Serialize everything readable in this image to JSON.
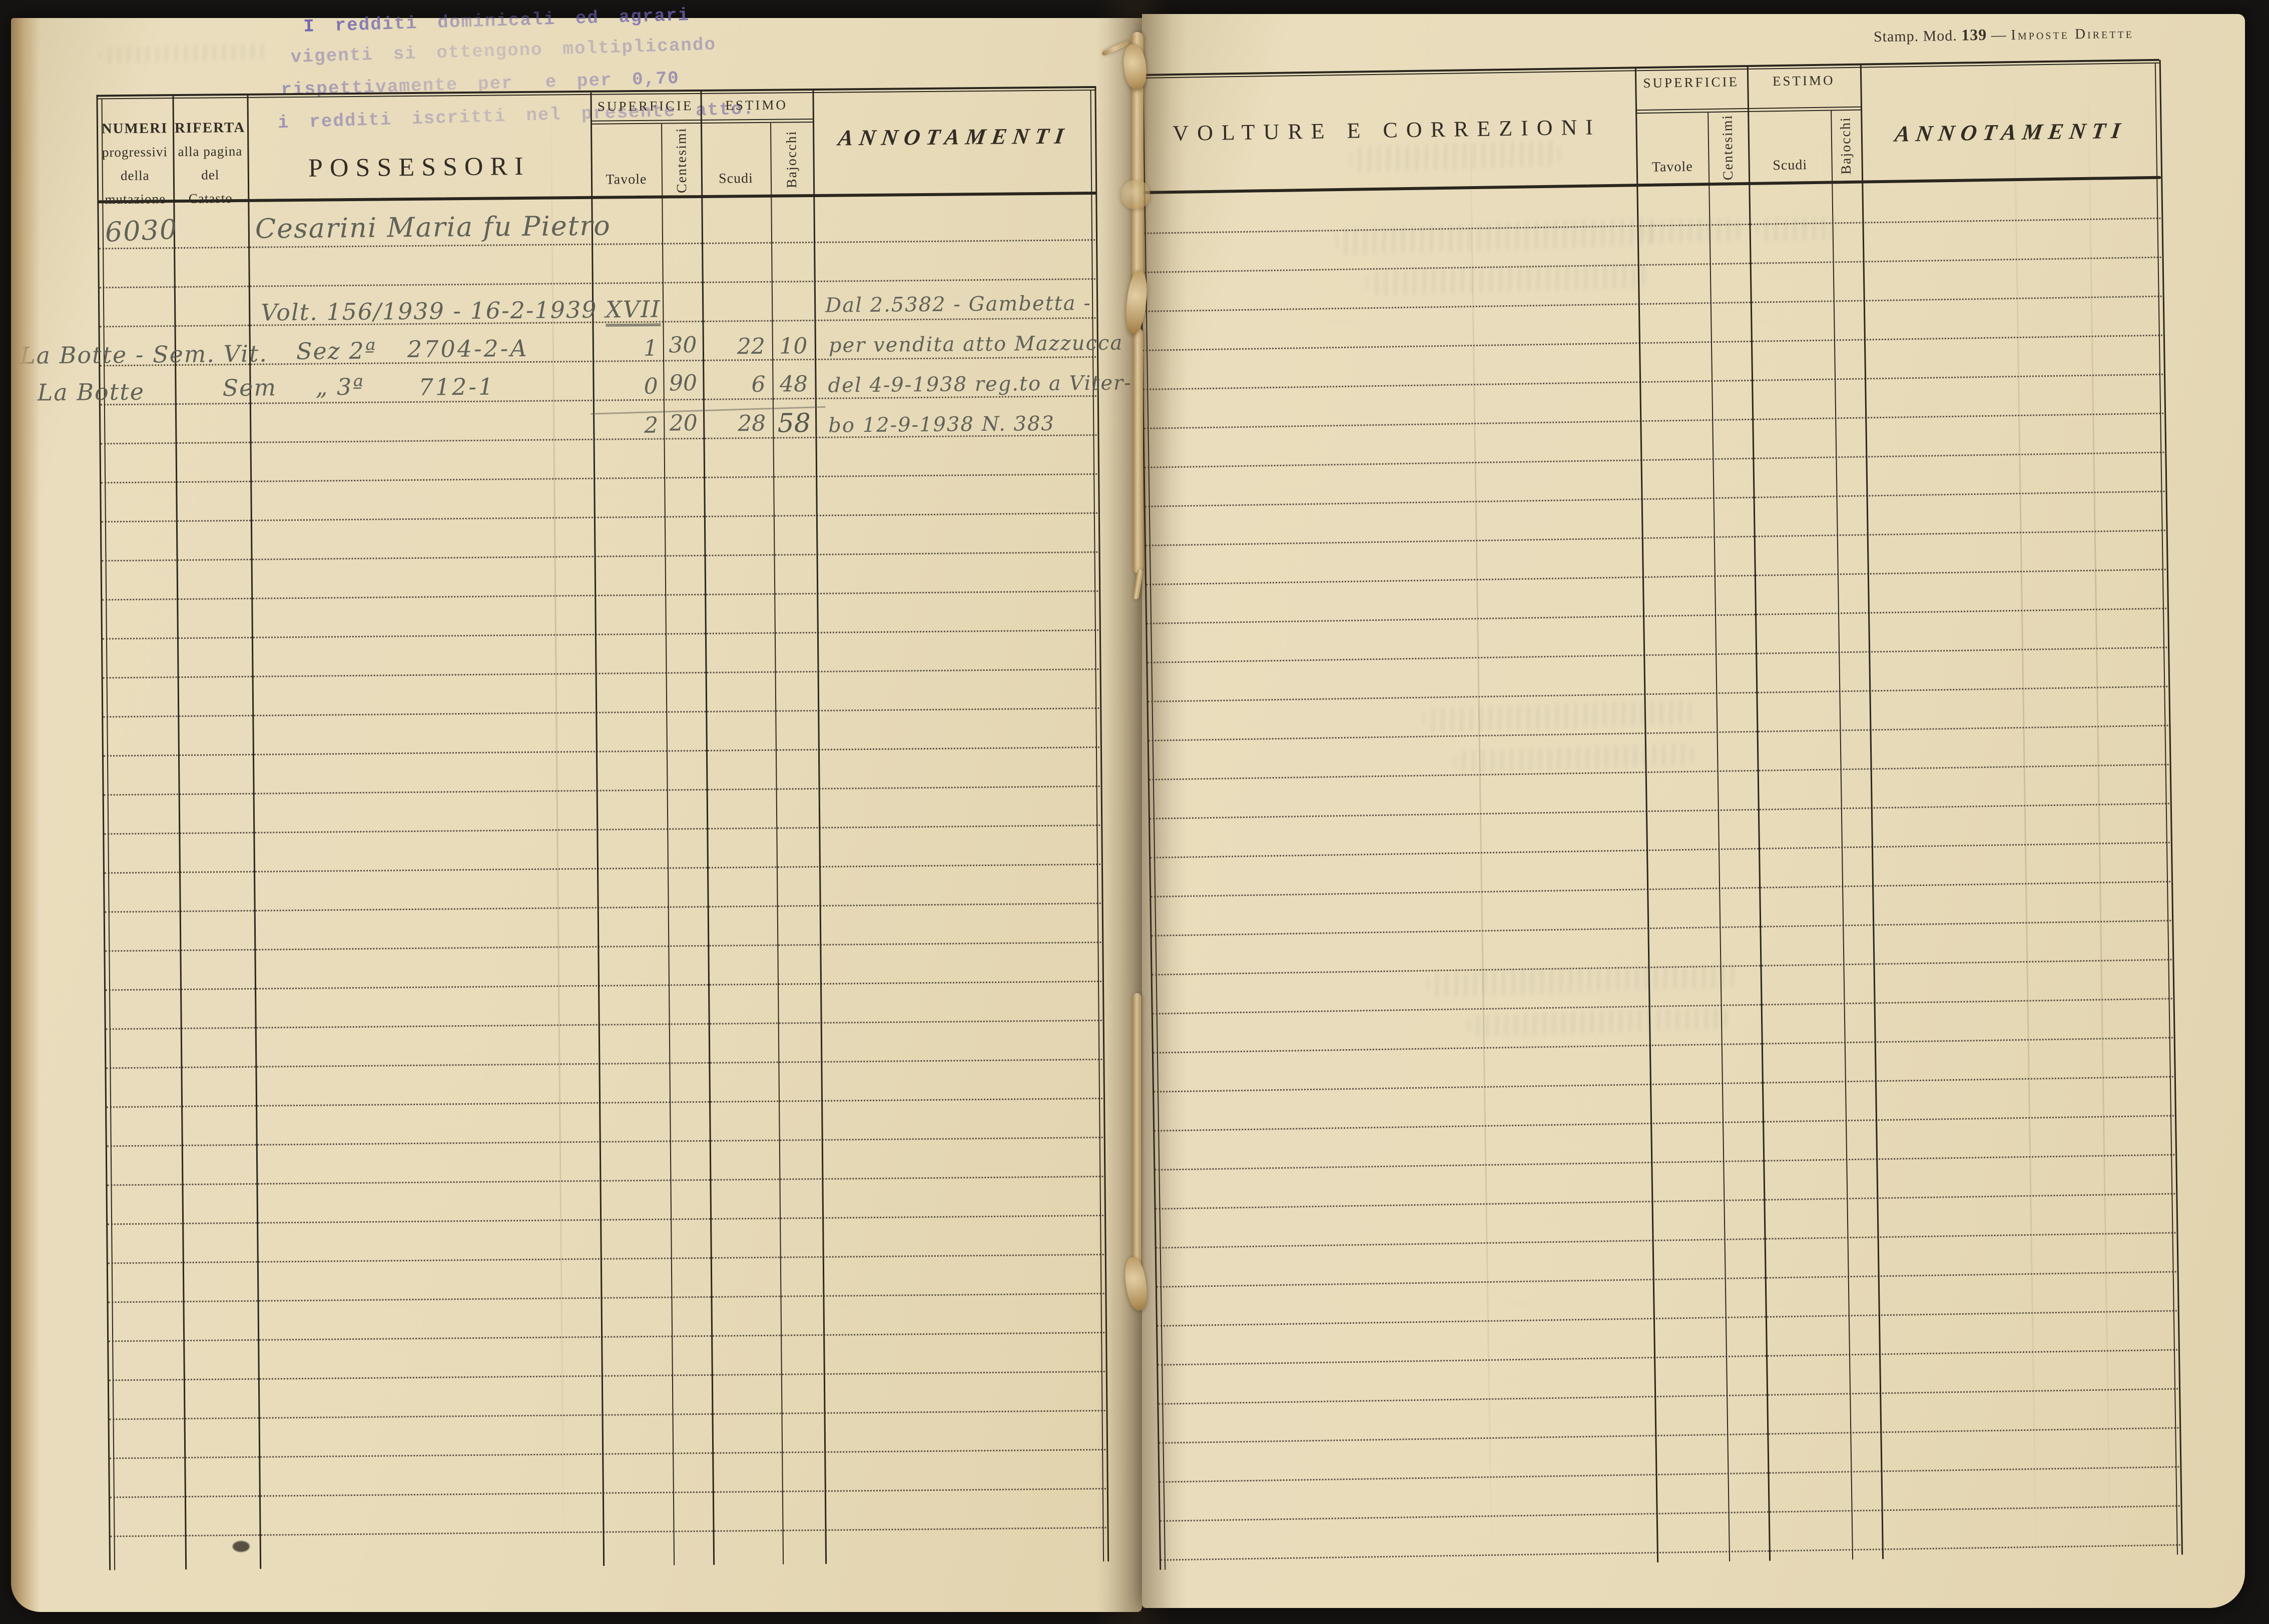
{
  "document": {
    "form_ref": {
      "prefix": "Stamp. Mod.",
      "number": "139",
      "suffix_dash": "—",
      "suffix": "Imposte Dirette"
    },
    "purple_stamp": {
      "line1": "I redditi dominicali ed agrari",
      "line2": "vigenti si ottengono moltiplicando",
      "line3a": "rispettivamente per",
      "line3b": "e per",
      "line3c": "0,70",
      "line4a": "i redditi iscritti nel presente",
      "line4b": "atto."
    }
  },
  "left_page": {
    "headers": {
      "numeri": [
        "NUMERI",
        "progressivi",
        "della",
        "mutazione"
      ],
      "riferta": [
        "RIFERTA",
        "alla pagina",
        "del",
        "Catasto"
      ],
      "possessori": "POSSESSORI",
      "superficie": "SUPERFICIE",
      "estimo": "ESTIMO",
      "tavole": "Tavole",
      "centesimi": "Centesimi",
      "scudi": "Scudi",
      "bajocchi": "Bajocchi",
      "annotamenti": "ANNOTAMENTI"
    },
    "entry": {
      "numero": "6030",
      "possessore": "Cesarini Maria fu Pietro",
      "voltura": "Volt. 156/1939 - 16-2-1939",
      "voltura_era": "XVII",
      "row1": {
        "margin": "La Botte - Sem. Vit.",
        "sezione": "Sez 2ª",
        "mappale": "2704-2-A",
        "tavole": "1",
        "centesimi": "30",
        "scudi": "22",
        "bajocchi": "10"
      },
      "row2": {
        "margin_loc": "La Botte",
        "margin_q": "Sem",
        "sezione": "„ 3ª",
        "mappale": "712-1",
        "tavole": "0",
        "centesimi": "90",
        "scudi": "6",
        "bajocchi": "48"
      },
      "totals": {
        "tavole": "2",
        "centesimi": "20",
        "scudi": "28",
        "bajocchi": "58"
      },
      "annotations": [
        "Dal 2.5382 - Gambetta -",
        "per vendita atto Mazzucca",
        "del 4-9-1938 reg.to a Viter-",
        "bo 12-9-1938 N. 383"
      ]
    }
  },
  "right_page": {
    "headers": {
      "volture": "VOLTURE E CORREZIONI",
      "superficie": "SUPERFICIE",
      "estimo": "ESTIMO",
      "tavole": "Tavole",
      "centesimi": "Centesimi",
      "scudi": "Scudi",
      "bajocchi": "Bajocchi",
      "annotamenti": "ANNOTAMENTI"
    }
  }
}
